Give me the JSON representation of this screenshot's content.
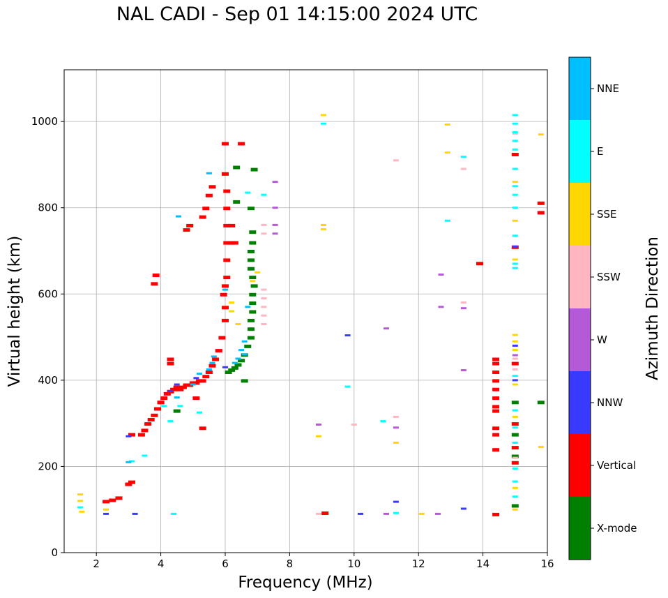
{
  "chart_data": {
    "type": "scatter",
    "title": "NAL CADI - Sep 01 14:15:00 2024 UTC",
    "xlabel": "Frequency (MHz)",
    "ylabel": "Virtual height (km)",
    "xlim": [
      1,
      16
    ],
    "ylim": [
      0,
      1120
    ],
    "xticks": [
      2,
      4,
      6,
      8,
      10,
      12,
      14,
      16
    ],
    "yticks": [
      0,
      200,
      400,
      600,
      800,
      1000
    ],
    "grid": true,
    "colorbar": {
      "label": "Azimuth Direction",
      "categories": [
        {
          "name": "X-mode",
          "color": "#008000"
        },
        {
          "name": "Vertical",
          "color": "#ff0000"
        },
        {
          "name": "NNW",
          "color": "#3a3aff"
        },
        {
          "name": "W",
          "color": "#b55ad6"
        },
        {
          "name": "SSW",
          "color": "#ffb6c1"
        },
        {
          "name": "SSE",
          "color": "#ffd700"
        },
        {
          "name": "E",
          "color": "#00ffff"
        },
        {
          "name": "NNE",
          "color": "#00bfff"
        }
      ]
    },
    "series": [
      {
        "name": "X-mode",
        "points": [
          [
            6.1,
            420
          ],
          [
            6.2,
            425
          ],
          [
            6.3,
            430
          ],
          [
            6.4,
            437
          ],
          [
            6.5,
            447
          ],
          [
            6.6,
            460
          ],
          [
            6.7,
            480
          ],
          [
            6.8,
            500
          ],
          [
            6.8,
            520
          ],
          [
            6.8,
            540
          ],
          [
            6.85,
            560
          ],
          [
            6.85,
            580
          ],
          [
            6.85,
            600
          ],
          [
            6.9,
            620
          ],
          [
            6.85,
            640
          ],
          [
            6.8,
            660
          ],
          [
            6.8,
            680
          ],
          [
            6.8,
            700
          ],
          [
            6.85,
            720
          ],
          [
            6.85,
            745
          ],
          [
            6.8,
            800
          ],
          [
            6.9,
            890
          ],
          [
            6.35,
            895
          ],
          [
            6.35,
            815
          ],
          [
            6.6,
            400
          ],
          [
            4.5,
            330
          ],
          [
            15,
            350
          ],
          [
            15,
            275
          ],
          [
            15,
            225
          ],
          [
            15,
            110
          ],
          [
            15.8,
            350
          ]
        ]
      },
      {
        "name": "Vertical",
        "points": [
          [
            2.3,
            120
          ],
          [
            2.5,
            123
          ],
          [
            2.7,
            128
          ],
          [
            3.0,
            160
          ],
          [
            3.1,
            165
          ],
          [
            3.1,
            275
          ],
          [
            3.4,
            275
          ],
          [
            3.5,
            285
          ],
          [
            3.6,
            300
          ],
          [
            3.7,
            310
          ],
          [
            3.8,
            320
          ],
          [
            3.9,
            335
          ],
          [
            4.0,
            350
          ],
          [
            4.1,
            360
          ],
          [
            4.2,
            370
          ],
          [
            4.3,
            375
          ],
          [
            4.4,
            380
          ],
          [
            4.5,
            385
          ],
          [
            4.6,
            380
          ],
          [
            4.7,
            385
          ],
          [
            4.8,
            390
          ],
          [
            4.9,
            390
          ],
          [
            5.0,
            395
          ],
          [
            5.1,
            395
          ],
          [
            5.2,
            400
          ],
          [
            5.3,
            400
          ],
          [
            5.4,
            410
          ],
          [
            5.5,
            420
          ],
          [
            5.6,
            435
          ],
          [
            5.7,
            450
          ],
          [
            5.8,
            470
          ],
          [
            5.9,
            500
          ],
          [
            6.0,
            540
          ],
          [
            6.0,
            570
          ],
          [
            5.95,
            600
          ],
          [
            6.0,
            620
          ],
          [
            6.05,
            640
          ],
          [
            6.05,
            680
          ],
          [
            6.05,
            720
          ],
          [
            6.2,
            720
          ],
          [
            6.3,
            720
          ],
          [
            6.05,
            760
          ],
          [
            6.2,
            760
          ],
          [
            6.05,
            800
          ],
          [
            6.05,
            840
          ],
          [
            6.0,
            880
          ],
          [
            6.0,
            950
          ],
          [
            5.6,
            850
          ],
          [
            5.5,
            830
          ],
          [
            5.4,
            800
          ],
          [
            5.3,
            780
          ],
          [
            4.9,
            760
          ],
          [
            4.8,
            750
          ],
          [
            3.8,
            625
          ],
          [
            3.85,
            645
          ],
          [
            4.3,
            440
          ],
          [
            4.3,
            450
          ],
          [
            4.0,
            350
          ],
          [
            5.1,
            360
          ],
          [
            5.3,
            290
          ],
          [
            14.4,
            330
          ],
          [
            14.4,
            340
          ],
          [
            14.4,
            360
          ],
          [
            14.4,
            380
          ],
          [
            14.4,
            400
          ],
          [
            14.4,
            420
          ],
          [
            14.4,
            440
          ],
          [
            14.4,
            450
          ],
          [
            14.4,
            275
          ],
          [
            14.4,
            290
          ],
          [
            14.4,
            240
          ],
          [
            14.4,
            90
          ],
          [
            13.9,
            672
          ],
          [
            15.0,
            925
          ],
          [
            15.0,
            710
          ],
          [
            15.0,
            440
          ],
          [
            15.0,
            300
          ],
          [
            15.0,
            245
          ],
          [
            15.0,
            210
          ],
          [
            15.8,
            812
          ],
          [
            15.8,
            790
          ],
          [
            9.1,
            93
          ],
          [
            6.5,
            950
          ]
        ]
      },
      {
        "name": "NNW",
        "points": [
          [
            2.3,
            90
          ],
          [
            3.0,
            270
          ],
          [
            3.2,
            90
          ],
          [
            4.3,
            375
          ],
          [
            4.5,
            390
          ],
          [
            5.1,
            405
          ],
          [
            6.0,
            430
          ],
          [
            9.8,
            504
          ],
          [
            10.2,
            90
          ],
          [
            11.3,
            118
          ],
          [
            13.4,
            102
          ],
          [
            15.0,
            710
          ],
          [
            15.0,
            480
          ],
          [
            15.0,
            400
          ]
        ]
      },
      {
        "name": "W",
        "points": [
          [
            7.55,
            860
          ],
          [
            7.55,
            800
          ],
          [
            7.55,
            760
          ],
          [
            7.55,
            740
          ],
          [
            8.9,
            297
          ],
          [
            11.0,
            520
          ],
          [
            11.3,
            290
          ],
          [
            11.0,
            90
          ],
          [
            12.6,
            90
          ],
          [
            12.7,
            645
          ],
          [
            12.7,
            570
          ],
          [
            13.4,
            567
          ],
          [
            13.4,
            423
          ],
          [
            15.0,
            458
          ]
        ]
      },
      {
        "name": "SSW",
        "points": [
          [
            7.2,
            760
          ],
          [
            7.2,
            740
          ],
          [
            7.2,
            610
          ],
          [
            7.2,
            590
          ],
          [
            7.2,
            570
          ],
          [
            7.2,
            550
          ],
          [
            7.2,
            530
          ],
          [
            8.9,
            90
          ],
          [
            10.0,
            297
          ],
          [
            11.3,
            910
          ],
          [
            11.3,
            315
          ],
          [
            13.4,
            890
          ],
          [
            13.4,
            580
          ],
          [
            15.0,
            972
          ],
          [
            15.0,
            450
          ],
          [
            15.0,
            425
          ],
          [
            15.0,
            220
          ]
        ]
      },
      {
        "name": "SSE",
        "points": [
          [
            1.5,
            135
          ],
          [
            1.5,
            120
          ],
          [
            1.55,
            95
          ],
          [
            2.3,
            100
          ],
          [
            6.2,
            580
          ],
          [
            6.2,
            560
          ],
          [
            6.4,
            530
          ],
          [
            6.85,
            630
          ],
          [
            7.0,
            650
          ],
          [
            8.9,
            270
          ],
          [
            9.05,
            1015
          ],
          [
            9.05,
            760
          ],
          [
            9.05,
            750
          ],
          [
            11.3,
            255
          ],
          [
            12.1,
            90
          ],
          [
            12.9,
            993
          ],
          [
            12.9,
            928
          ],
          [
            15.0,
            860
          ],
          [
            15.0,
            770
          ],
          [
            15.0,
            680
          ],
          [
            15.0,
            505
          ],
          [
            15.0,
            490
          ],
          [
            15.0,
            470
          ],
          [
            15.0,
            390
          ],
          [
            15.0,
            315
          ],
          [
            15.0,
            150
          ],
          [
            15.0,
            100
          ],
          [
            15.8,
            970
          ],
          [
            15.8,
            245
          ]
        ]
      },
      {
        "name": "E",
        "points": [
          [
            1.5,
            105
          ],
          [
            3.1,
            212
          ],
          [
            3.5,
            225
          ],
          [
            4.4,
            90
          ],
          [
            4.3,
            305
          ],
          [
            4.1,
            340
          ],
          [
            4.6,
            340
          ],
          [
            5.2,
            325
          ],
          [
            6.7,
            835
          ],
          [
            7.2,
            830
          ],
          [
            9.05,
            995
          ],
          [
            9.8,
            385
          ],
          [
            10.9,
            305
          ],
          [
            11.3,
            92
          ],
          [
            12.9,
            770
          ],
          [
            13.4,
            918
          ],
          [
            15.0,
            1015
          ],
          [
            15.0,
            995
          ],
          [
            15.0,
            975
          ],
          [
            15.0,
            955
          ],
          [
            15.0,
            935
          ],
          [
            15.0,
            890
          ],
          [
            15.0,
            850
          ],
          [
            15.0,
            830
          ],
          [
            15.0,
            800
          ],
          [
            15.0,
            735
          ],
          [
            15.0,
            670
          ],
          [
            15.0,
            660
          ],
          [
            15.0,
            410
          ],
          [
            15.0,
            330
          ],
          [
            15.0,
            290
          ],
          [
            15.0,
            255
          ],
          [
            15.0,
            195
          ],
          [
            15.0,
            165
          ],
          [
            15.0,
            130
          ]
        ]
      },
      {
        "name": "NNE",
        "points": [
          [
            3.0,
            210
          ],
          [
            4.5,
            360
          ],
          [
            5.0,
            390
          ],
          [
            5.2,
            415
          ],
          [
            5.5,
            425
          ],
          [
            5.6,
            440
          ],
          [
            5.65,
            455
          ],
          [
            6.3,
            440
          ],
          [
            6.4,
            450
          ],
          [
            6.5,
            470
          ],
          [
            6.6,
            490
          ],
          [
            6.7,
            570
          ],
          [
            6.6,
            460
          ],
          [
            5.5,
            880
          ],
          [
            6.0,
            610
          ],
          [
            4.55,
            780
          ]
        ]
      }
    ]
  }
}
